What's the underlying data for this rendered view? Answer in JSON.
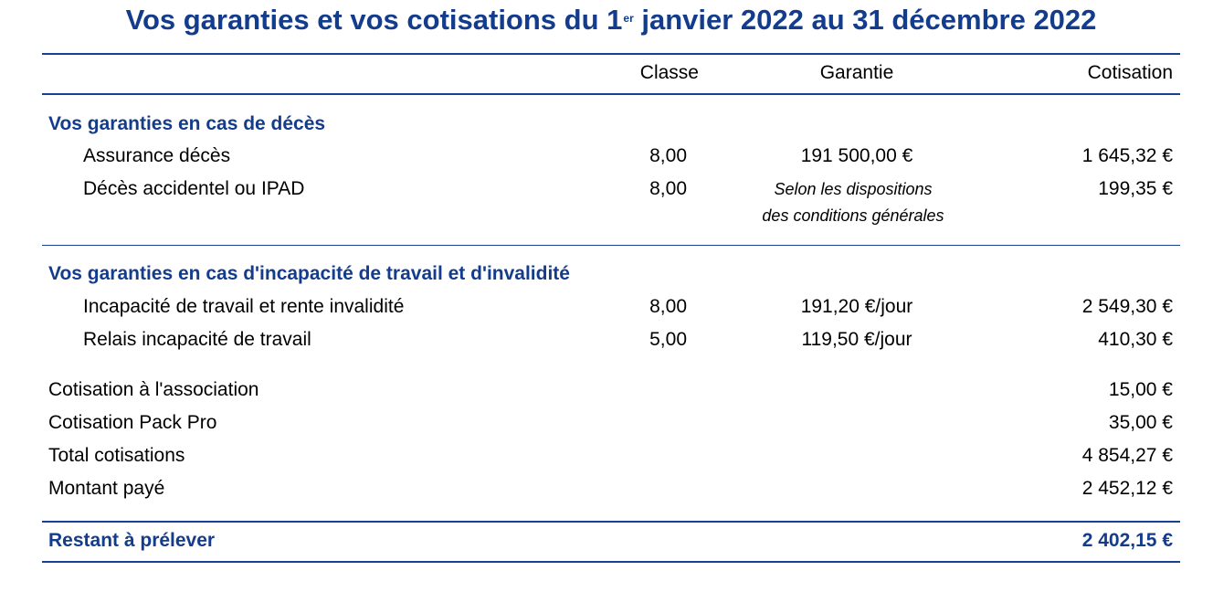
{
  "title": {
    "part1": "Vos garanties et vos cotisations du 1",
    "sup": "er",
    "part2": " janvier 2022 au 31 décembre 2022"
  },
  "headers": {
    "classe": "Classe",
    "garantie": "Garantie",
    "cotisation": "Cotisation"
  },
  "sections": [
    {
      "heading": "Vos garanties en cas de décès",
      "rows": [
        {
          "label": "Assurance décès",
          "classe": "8,00",
          "garantie": "191 500,00 €",
          "cotisation": "1 645,32 €"
        },
        {
          "label": "Décès accidentel ou IPAD",
          "classe": "8,00",
          "garantie_note": [
            "Selon les dispositions",
            "des conditions générales"
          ],
          "cotisation": "199,35 €"
        }
      ]
    },
    {
      "heading": "Vos garanties en cas d'incapacité de travail et d'invalidité",
      "rows": [
        {
          "label": "Incapacité de travail et rente invalidité",
          "classe": "8,00",
          "garantie": "191,20 €/jour",
          "cotisation": "2 549,30 €"
        },
        {
          "label": "Relais incapacité de travail",
          "classe": "5,00",
          "garantie": "119,50 €/jour",
          "cotisation": "410,30 €"
        }
      ]
    }
  ],
  "summary": [
    {
      "label": "Cotisation à l'association",
      "value": "15,00 €"
    },
    {
      "label": "Cotisation Pack Pro",
      "value": "35,00 €"
    },
    {
      "label": "Total cotisations",
      "value": "4 854,27 €"
    },
    {
      "label": "Montant payé",
      "value": "2 452,12 €"
    }
  ],
  "final": {
    "label": "Restant à prélever",
    "value": "2 402,15 €"
  },
  "colors": {
    "accent": "#143c8c",
    "rule": "#1b3f8f"
  }
}
